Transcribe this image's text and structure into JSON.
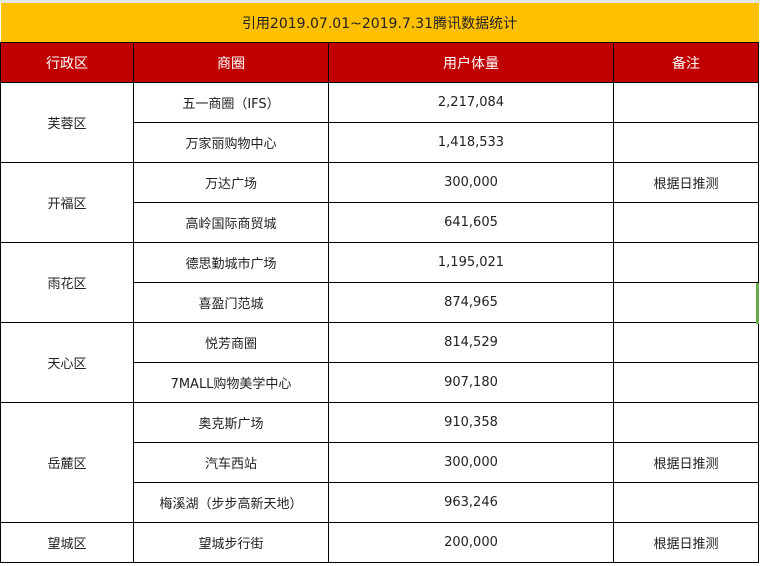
{
  "title": "引用2019.07.01~2019.7.31腾讯数据统计",
  "colors": {
    "title_bg": "#FFC000",
    "header_bg": "#C00000",
    "header_text": "#FFFFFF"
  },
  "headers": [
    "行政区",
    "商圈",
    "用户体量",
    "备注"
  ],
  "groups": [
    {
      "district": "芙蓉区",
      "rows": [
        {
          "area": "五一商圈（IFS）",
          "users": "2,217,084",
          "note": ""
        },
        {
          "area": "万家丽购物中心",
          "users": "1,418,533",
          "note": ""
        }
      ]
    },
    {
      "district": "开福区",
      "rows": [
        {
          "area": "万达广场",
          "users": "300,000",
          "note": "根据日推测"
        },
        {
          "area": "高岭国际商贸城",
          "users": "641,605",
          "note": ""
        }
      ]
    },
    {
      "district": "雨花区",
      "rows": [
        {
          "area": "德思勤城市广场",
          "users": "1,195,021",
          "note": ""
        },
        {
          "area": "喜盈门范城",
          "users": "874,965",
          "note": ""
        }
      ]
    },
    {
      "district": "天心区",
      "rows": [
        {
          "area": "悦芳商圈",
          "users": "814,529",
          "note": ""
        },
        {
          "area": "7MALL购物美学中心",
          "users": "907,180",
          "note": ""
        }
      ]
    },
    {
      "district": "岳麓区",
      "rows": [
        {
          "area": "奥克斯广场",
          "users": "910,358",
          "note": ""
        },
        {
          "area": "汽车西站",
          "users": "300,000",
          "note": "根据日推测"
        },
        {
          "area": "梅溪湖（步步高新天地）",
          "users": "963,246",
          "note": ""
        }
      ]
    },
    {
      "district": "望城区",
      "rows": [
        {
          "area": "望城步行街",
          "users": "200,000",
          "note": "根据日推测"
        }
      ]
    }
  ]
}
